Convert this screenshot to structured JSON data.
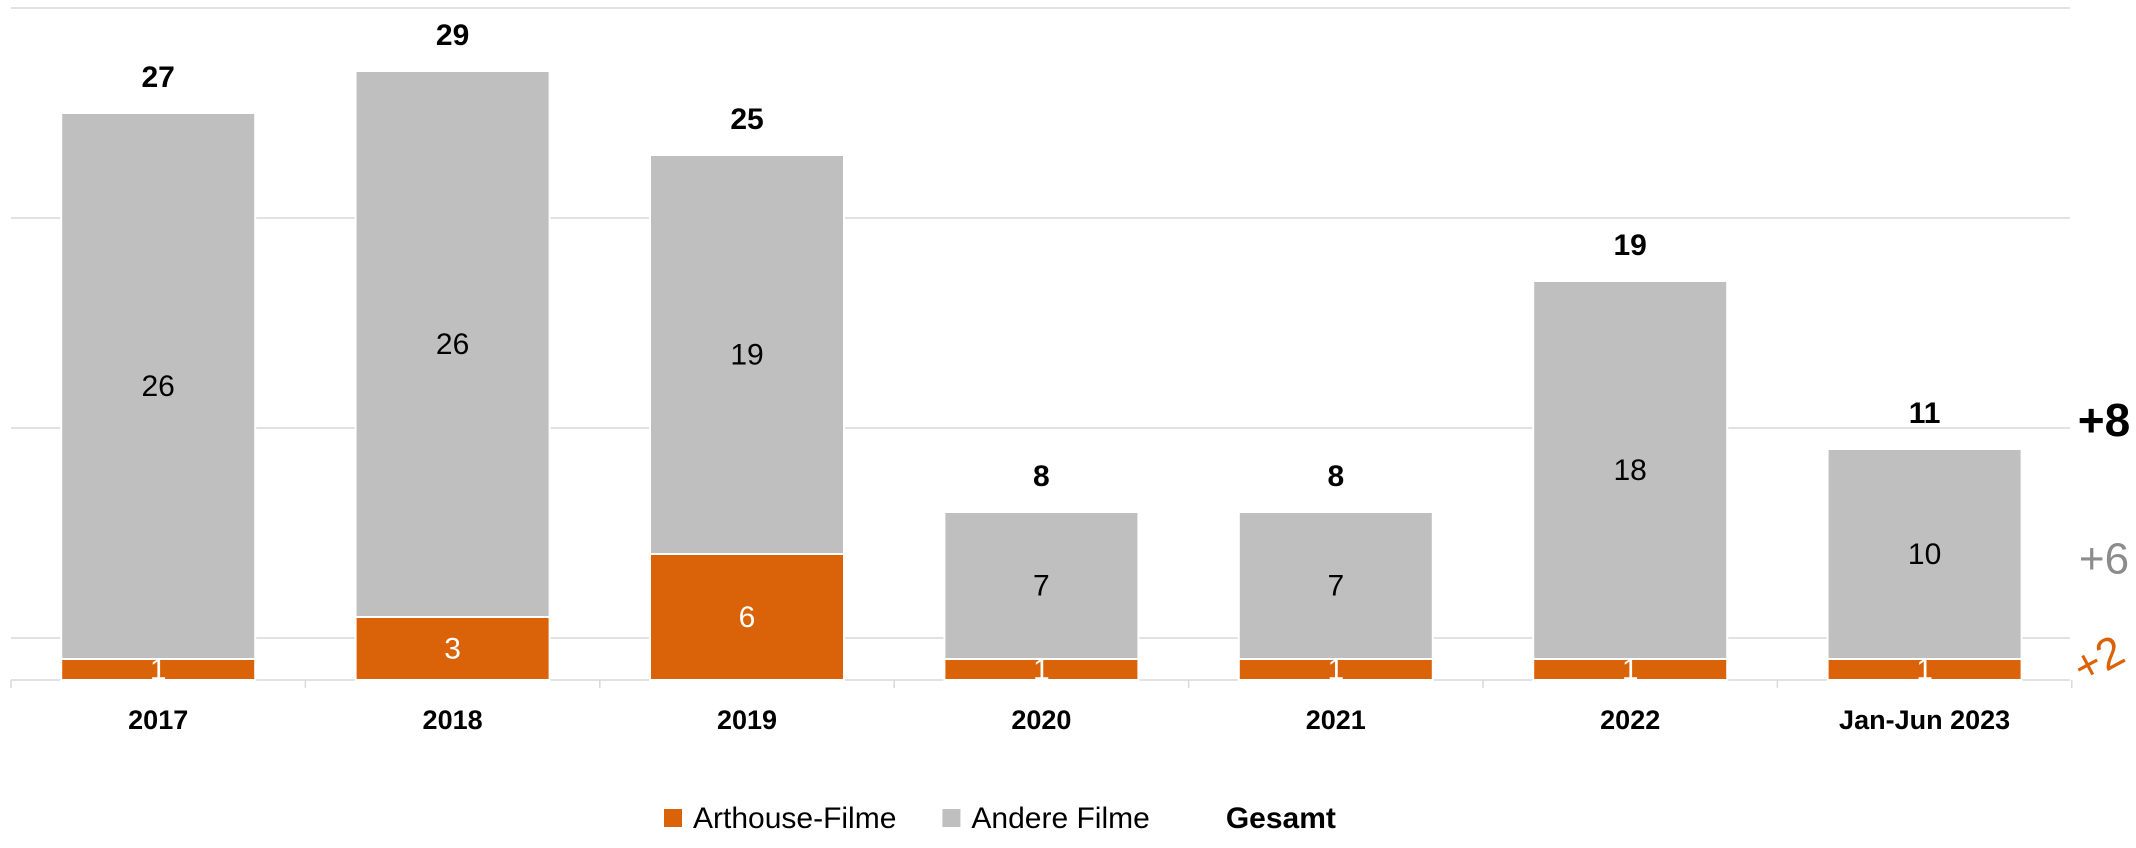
{
  "chart_data": {
    "type": "stacked_bar",
    "categories": [
      "2017",
      "2018",
      "2019",
      "2020",
      "2021",
      "2022",
      "Jan-Jun 2023"
    ],
    "series": [
      {
        "name": "Arthouse-Filme",
        "color": "#da6208",
        "label_color": "#ffffff",
        "values": [
          1,
          3,
          6,
          1,
          1,
          1,
          1
        ]
      },
      {
        "name": "Andere Filme",
        "color": "#bfbfbf",
        "label_color": "#000000",
        "values": [
          26,
          26,
          19,
          7,
          7,
          18,
          10
        ]
      }
    ],
    "totals": {
      "name": "Gesamt",
      "values": [
        27,
        29,
        25,
        8,
        8,
        19,
        11
      ]
    },
    "ylim": [
      0,
      32
    ],
    "yticks": [
      2,
      12,
      22,
      32
    ],
    "grid": true,
    "annotations": [
      {
        "text": "+8",
        "color": "#000000",
        "bold": true
      },
      {
        "text": "+6",
        "color": "#8c8c8c",
        "bold": false
      },
      {
        "text": "+2",
        "color": "#da6208",
        "bold": false
      }
    ]
  }
}
